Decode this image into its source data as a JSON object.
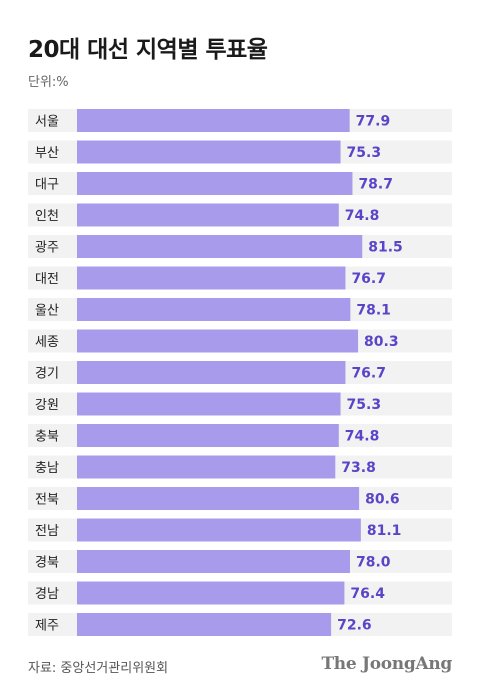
{
  "header": {
    "title": "20대 대선 지역별 투표율",
    "unit": "단위:%"
  },
  "footer": {
    "source": "자료: 중앙선거관리위원회",
    "brand": "The JoongAng"
  },
  "colors": {
    "bar": "#a99bec",
    "value": "#5a45c8",
    "row_alt": "#f2f2f2"
  },
  "chart_data": {
    "type": "bar",
    "orientation": "horizontal",
    "categories": [
      "서울",
      "부산",
      "대구",
      "인천",
      "광주",
      "대전",
      "울산",
      "세종",
      "경기",
      "강원",
      "충북",
      "충남",
      "전북",
      "전남",
      "경북",
      "경남",
      "제주"
    ],
    "values": [
      77.9,
      75.3,
      78.7,
      74.8,
      81.5,
      76.7,
      78.1,
      80.3,
      76.7,
      75.3,
      74.8,
      73.8,
      80.6,
      81.1,
      78.0,
      76.4,
      72.6
    ],
    "value_labels": [
      "77.9",
      "75.3",
      "78.7",
      "74.8",
      "81.5",
      "76.7",
      "78.1",
      "80.3",
      "76.7",
      "75.3",
      "74.8",
      "73.8",
      "80.6",
      "81.1",
      "78.0",
      "76.4",
      "72.6"
    ],
    "title": "20대 대선 지역별 투표율",
    "xlabel": "",
    "ylabel": "",
    "xlim": [
      0,
      100
    ],
    "grid": false,
    "legend": "none"
  }
}
